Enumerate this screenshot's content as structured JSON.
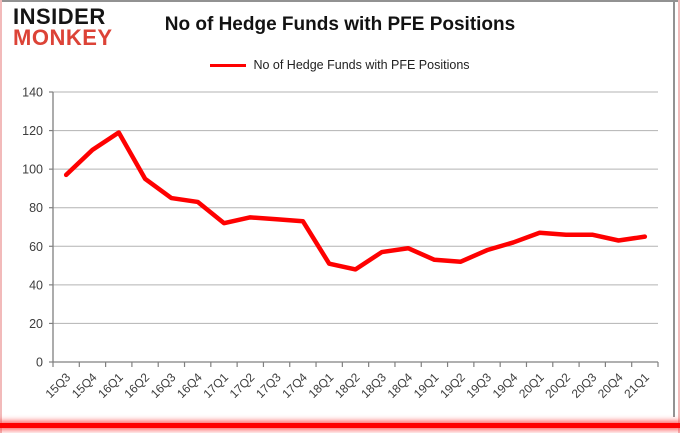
{
  "logo": {
    "line1": "INSIDER",
    "line2": "MONKEY",
    "line1_color": "#151515",
    "line2_color": "#dc4337"
  },
  "chart_data": {
    "type": "line",
    "title": "No of Hedge Funds with PFE Positions",
    "categories": [
      "15Q3",
      "15Q4",
      "16Q1",
      "16Q2",
      "16Q3",
      "16Q4",
      "17Q1",
      "17Q2",
      "17Q3",
      "17Q4",
      "18Q1",
      "18Q2",
      "18Q3",
      "18Q4",
      "19Q1",
      "19Q2",
      "19Q3",
      "19Q4",
      "20Q1",
      "20Q2",
      "20Q3",
      "20Q4",
      "21Q1"
    ],
    "series": [
      {
        "name": "No of Hedge Funds with PFE Positions",
        "color": "#fe0101",
        "values": [
          97,
          110,
          119,
          95,
          85,
          83,
          72,
          75,
          74,
          73,
          51,
          48,
          57,
          59,
          53,
          52,
          58,
          62,
          67,
          66,
          66,
          63,
          65
        ]
      }
    ],
    "xlabel": "",
    "ylabel": "",
    "ylim": [
      0,
      140
    ],
    "ytick_interval": 20,
    "yticks": [
      0,
      20,
      40,
      60,
      80,
      100,
      120,
      140
    ],
    "grid": true,
    "legend_position": "top-center",
    "line_width": 4.5,
    "gridline_color": "#b3b3b3",
    "axis_color": "#808080",
    "tick_label_color": "#3d3d3d"
  },
  "colors": {
    "background": "#ffffff",
    "outer_border_pink": "#f2baba",
    "frame_border_gray": "#929292",
    "bottom_bar_red": "#fe0101"
  }
}
